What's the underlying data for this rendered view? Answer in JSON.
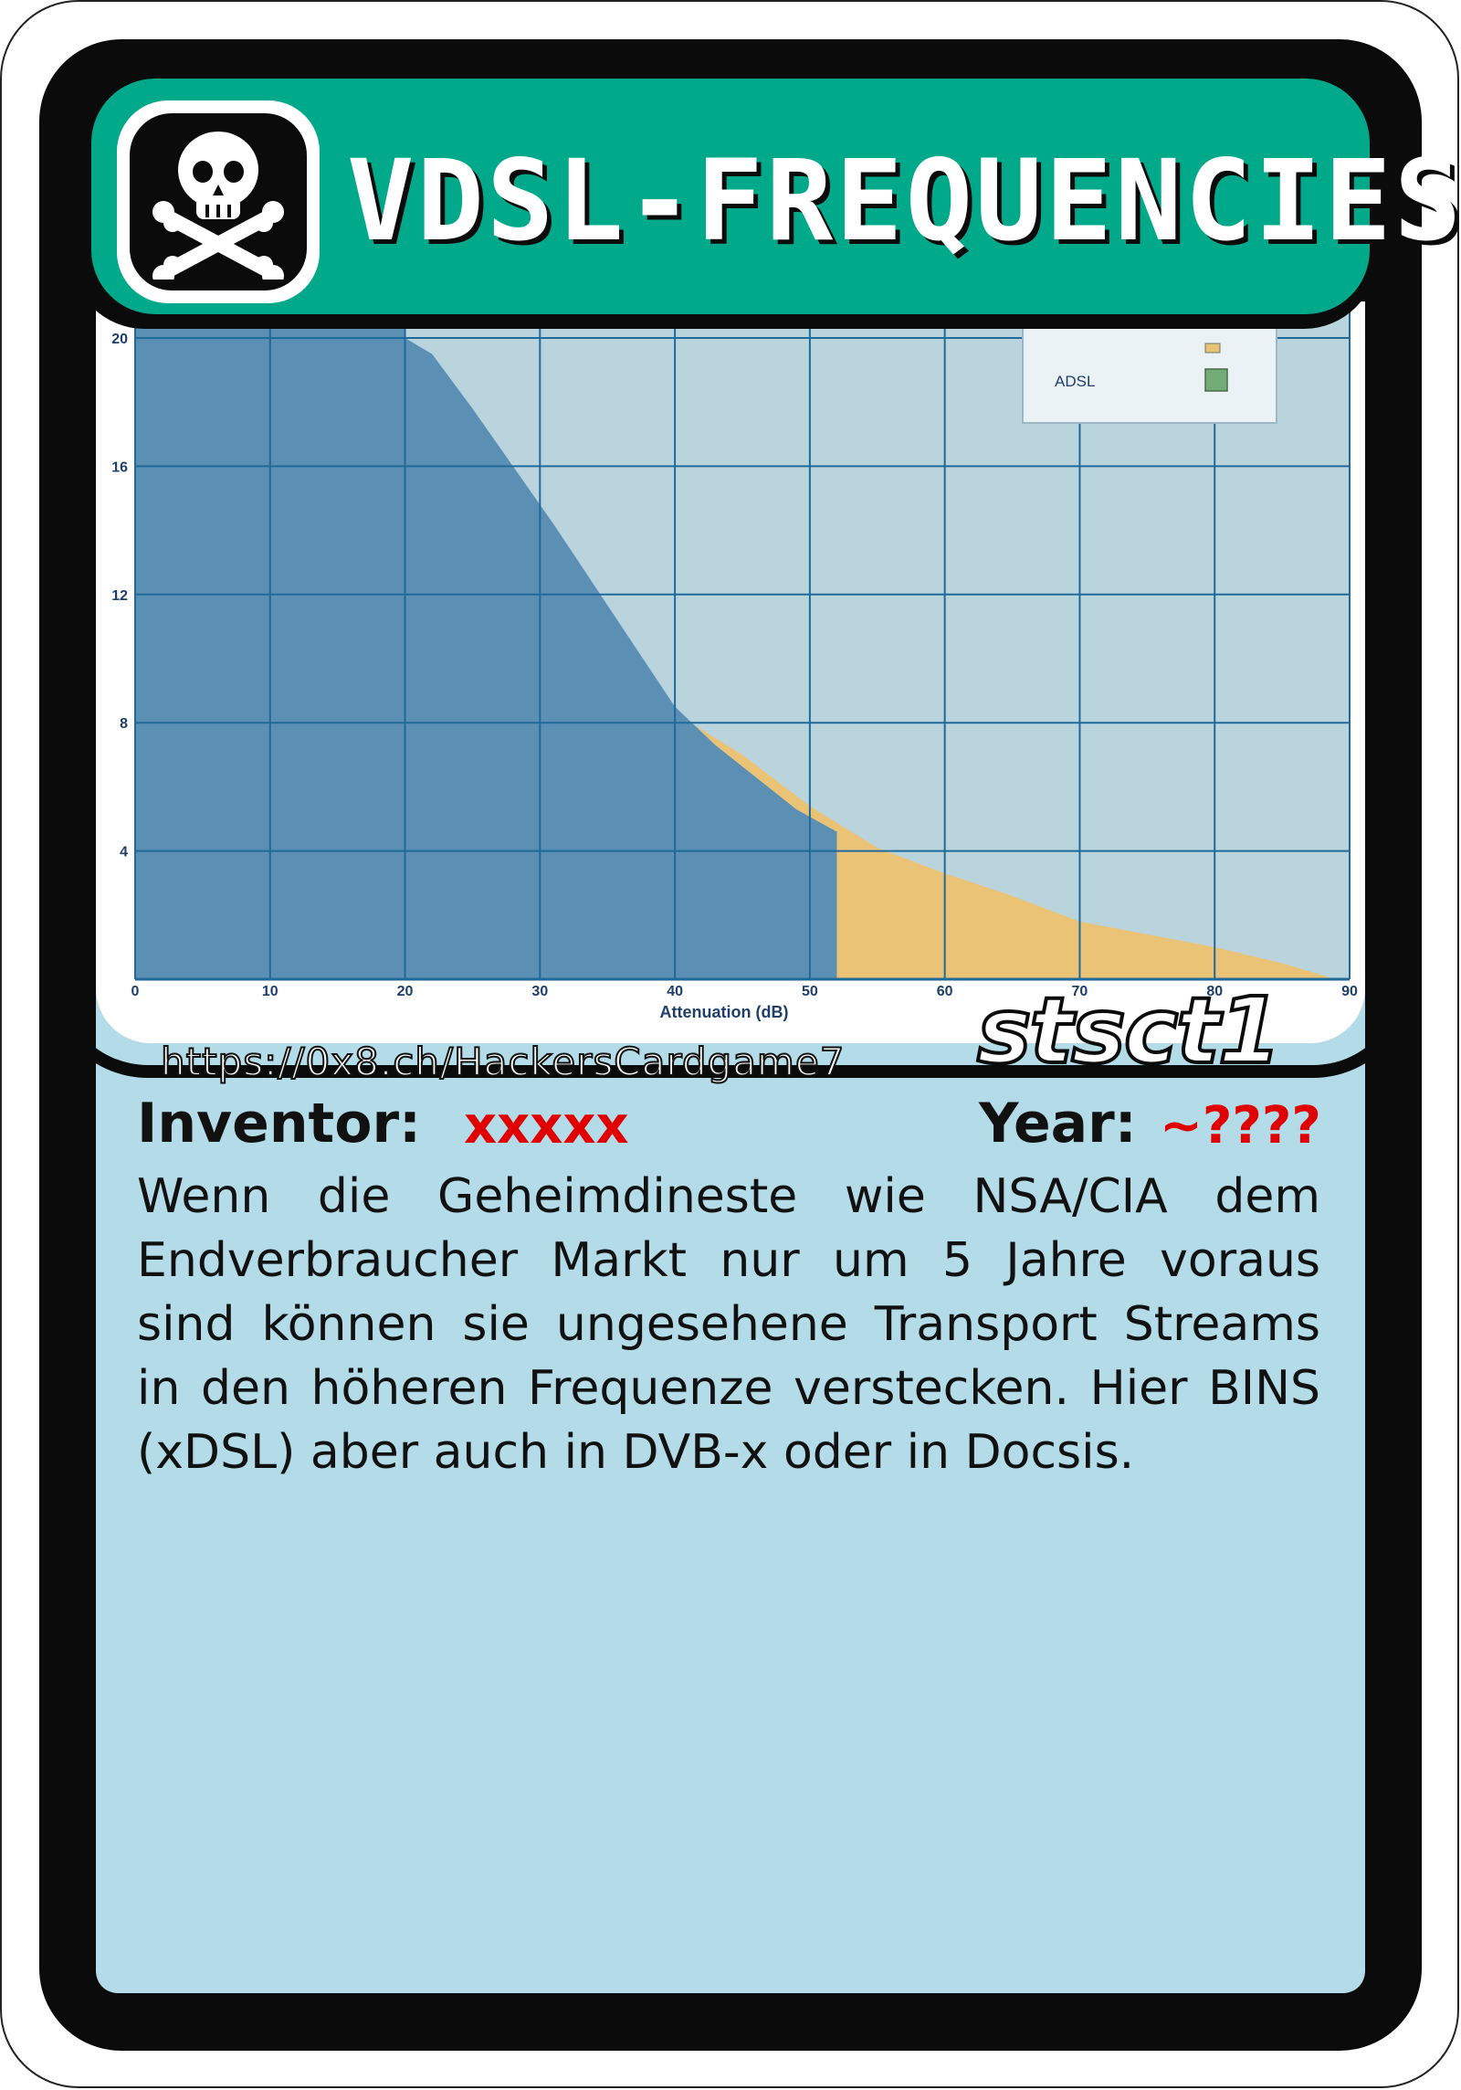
{
  "card": {
    "title": "VDSL-FREQUENCIES",
    "url": "https://0x8.ch/HackersCardgame7",
    "author_tag": "stsct1",
    "inventor_label": "Inventor:",
    "inventor_value": "xxxxx",
    "year_label": "Year:",
    "year_value": "~????",
    "description": "Wenn die Geheimdineste wie NSA/CIA dem Endverbraucher Markt nur um 5 Jahre voraus sind können sie ungesehene Transport Streams in den höheren Frequenze verstecken. Hier BINS (xDSL) aber auch in DVB-x oder in Docsis.",
    "icon": "skull-crossbones-icon",
    "colors": {
      "title_bar": "#00a98a",
      "body_bg": "#b3dbe8",
      "accent_red": "#e00000"
    }
  },
  "chart_data": {
    "type": "area",
    "xlabel": "Attenuation (dB)",
    "ylabel": "",
    "xlim": [
      0,
      90
    ],
    "ylim": [
      0,
      20
    ],
    "x_ticks": [
      "0",
      "10",
      "20",
      "30",
      "40",
      "50",
      "60",
      "70",
      "80",
      "90"
    ],
    "y_ticks": [
      "4",
      "8",
      "12",
      "16",
      "20"
    ],
    "grid": true,
    "legend_position": "top-right",
    "legend": [
      "ADSL"
    ],
    "series": [
      {
        "name": "ADSL",
        "color": "#72ad78",
        "x": [
          0,
          28,
          35,
          40,
          45,
          50,
          55,
          60,
          65,
          70,
          75,
          77
        ],
        "y": [
          8,
          8,
          7.8,
          7.3,
          6.5,
          5.2,
          4.0,
          3.2,
          2.4,
          1.5,
          0.5,
          0
        ]
      },
      {
        "name": "",
        "color": "#eac377",
        "x": [
          0,
          20,
          25,
          30,
          35,
          40,
          45,
          50,
          55,
          60,
          65,
          70,
          75,
          80,
          85,
          89
        ],
        "y": [
          12,
          12,
          11.4,
          10.5,
          9.5,
          8.3,
          7.0,
          5.4,
          4.1,
          3.3,
          2.6,
          1.8,
          1.4,
          1.0,
          0.5,
          0
        ]
      },
      {
        "name": "",
        "color": "#5b8fb4",
        "x": [
          0,
          20,
          22,
          25,
          28,
          31,
          34,
          37,
          40,
          43,
          46,
          49,
          52
        ],
        "y": [
          20,
          20,
          19.5,
          17.8,
          16.0,
          14.2,
          12.3,
          10.4,
          8.5,
          7.3,
          6.3,
          5.3,
          4.6
        ]
      }
    ],
    "background_color": "#bad4de"
  }
}
